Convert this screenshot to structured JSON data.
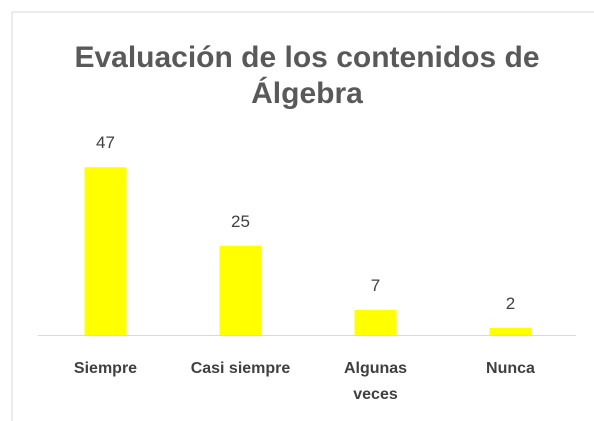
{
  "chart_data": {
    "type": "bar",
    "title": "Evaluación de los contenidos de Álgebra",
    "categories": [
      "Siempre",
      "Casi siempre",
      "Algunas veces",
      "Nunca"
    ],
    "values": [
      47,
      25,
      7,
      2
    ],
    "color": "#ffff00"
  }
}
